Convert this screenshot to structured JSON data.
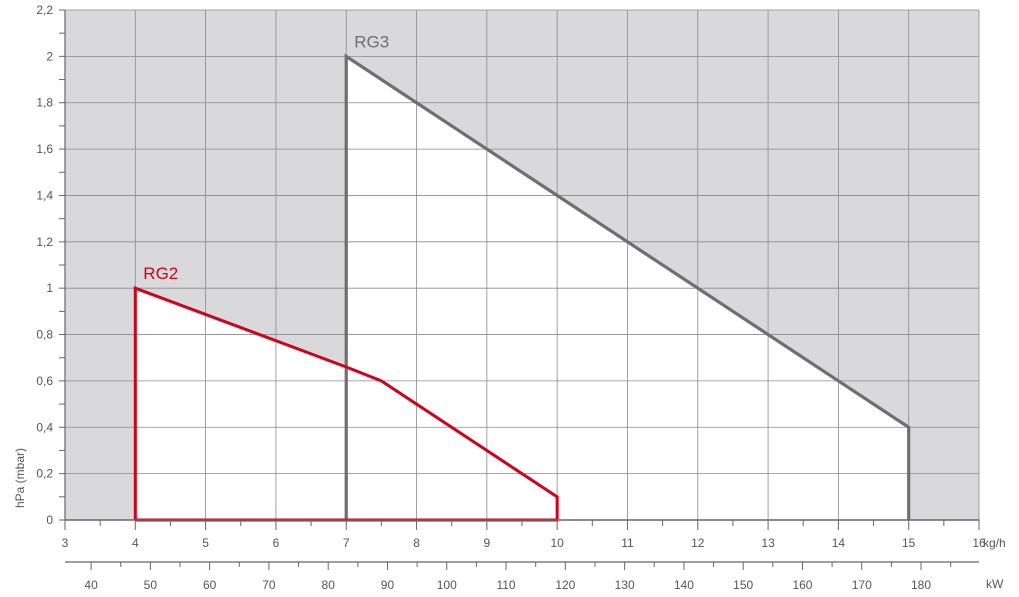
{
  "chart_data": {
    "type": "area",
    "ylabel": "hPa (mbar)",
    "x_unit": "kg/h",
    "x2_unit": "kW",
    "xlim": [
      3,
      16
    ],
    "ylim": [
      0,
      2.2
    ],
    "x_ticks": [
      "3",
      "4",
      "5",
      "6",
      "7",
      "8",
      "9",
      "10",
      "11",
      "12",
      "13",
      "14",
      "15",
      "16"
    ],
    "y_ticks": [
      "0",
      "0,2",
      "0,4",
      "0,6",
      "0,8",
      "1",
      "1,2",
      "1,4",
      "1,6",
      "1,8",
      "2",
      "2,2"
    ],
    "x2_ticks": [
      "40",
      "50",
      "60",
      "70",
      "80",
      "90",
      "100",
      "110",
      "120",
      "130",
      "140",
      "150",
      "160",
      "170",
      "180"
    ],
    "series": [
      {
        "name": "RG2",
        "color": "#d0021b",
        "points": [
          [
            4,
            0
          ],
          [
            4,
            1.0
          ],
          [
            7,
            0.66
          ],
          [
            7.5,
            0.6
          ],
          [
            10,
            0.1
          ],
          [
            10,
            0
          ],
          [
            4,
            0
          ]
        ]
      },
      {
        "name": "RG3",
        "color": "#6e6e73",
        "points": [
          [
            7,
            0
          ],
          [
            7,
            2.0
          ],
          [
            15,
            0.4
          ],
          [
            15,
            0
          ]
        ]
      }
    ],
    "grid": true,
    "background_color": "#d9d9db"
  }
}
